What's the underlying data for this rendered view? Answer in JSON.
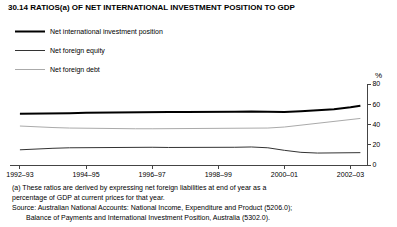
{
  "chart_data": {
    "type": "line",
    "title": "30.14 RATIOS(a) OF NET INTERNATIONAL INVESTMENT POSITION TO GDP",
    "y_label": "%",
    "x": [
      1992.5,
      1993.0,
      1993.5,
      1994.0,
      1994.5,
      1995.0,
      1995.5,
      1996.0,
      1996.5,
      1997.0,
      1997.5,
      1998.0,
      1998.5,
      1999.0,
      1999.5,
      2000.0,
      2000.5,
      2001.0,
      2001.5,
      2002.0,
      2002.5,
      2002.8
    ],
    "series": [
      {
        "name": "Net international investment position",
        "color": "#000000",
        "values": [
          50.5,
          50.5,
          50.8,
          51.0,
          51.5,
          51.8,
          52.0,
          52.2,
          52.3,
          52.3,
          52.3,
          52.2,
          52.2,
          52.5,
          52.8,
          52.5,
          52.3,
          53.0,
          53.8,
          55.0,
          57.0,
          58.5
        ]
      },
      {
        "name": "Net foreign equity",
        "color": "#333333",
        "values": [
          15.0,
          16.0,
          16.5,
          17.0,
          17.2,
          17.5,
          17.5,
          17.5,
          17.5,
          17.3,
          17.2,
          17.0,
          17.2,
          17.5,
          17.8,
          17.0,
          14.5,
          12.5,
          11.8,
          11.8,
          12.0,
          12.2
        ]
      },
      {
        "name": "Net foreign debt",
        "color": "#aaaaaa",
        "values": [
          38.5,
          37.5,
          37.0,
          36.5,
          36.2,
          36.0,
          35.8,
          35.8,
          35.8,
          36.0,
          36.0,
          36.2,
          36.2,
          36.5,
          36.5,
          36.5,
          37.5,
          39.5,
          41.5,
          43.5,
          45.0,
          46.0
        ]
      }
    ],
    "xlim": [
      1992.2,
      2003.0
    ],
    "xticks": [
      {
        "value": 1992.5,
        "label": "1992–93"
      },
      {
        "value": 1994.5,
        "label": "1994–95"
      },
      {
        "value": 1996.5,
        "label": "1996–97"
      },
      {
        "value": 1998.5,
        "label": "1998–99"
      },
      {
        "value": 2000.5,
        "label": "2000–01"
      },
      {
        "value": 2002.5,
        "label": "2002–03"
      }
    ],
    "ylim": [
      0,
      80
    ],
    "yticks": [
      0,
      20,
      40,
      60,
      80
    ],
    "grid": false,
    "legend": "upper left",
    "annotations": [
      "(a) These ratios are derived by expressing net foreign liabilities at end of year as a",
      "percentage of GDP at current prices for that year.",
      "Source: Australian National Accounts: National Income, Expenditure and Product (5206.0);",
      "Balance of Payments and International Investment Position, Australia (5302.0)."
    ]
  }
}
